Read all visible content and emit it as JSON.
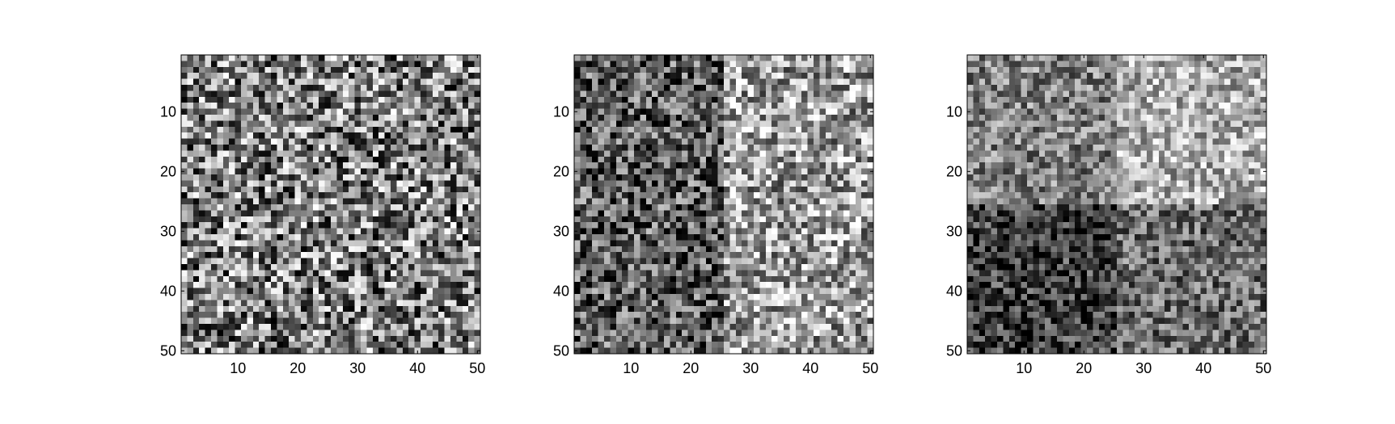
{
  "chart_data": [
    {
      "type": "heatmap",
      "title": "",
      "xlabel": "",
      "ylabel": "",
      "size": 50,
      "colormap": "gray",
      "xlim": [
        0.5,
        50.5
      ],
      "ylim": [
        0.5,
        50.5
      ],
      "y_direction": "reversed",
      "xticks": [
        10,
        20,
        30,
        40,
        50
      ],
      "yticks": [
        10,
        20,
        30,
        40,
        50
      ],
      "grid": false,
      "value_range": [
        0,
        1
      ],
      "pattern": "uniform random noise",
      "quadrant_means": {
        "top_left": 0.5,
        "top_right": 0.5,
        "bottom_left": 0.5,
        "bottom_right": 0.5
      },
      "noise_amplitude": 0.5
    },
    {
      "type": "heatmap",
      "title": "",
      "xlabel": "",
      "ylabel": "",
      "size": 50,
      "colormap": "gray",
      "xlim": [
        0.5,
        50.5
      ],
      "ylim": [
        0.5,
        50.5
      ],
      "y_direction": "reversed",
      "xticks": [
        10,
        20,
        30,
        40,
        50
      ],
      "yticks": [
        10,
        20,
        30,
        40,
        50
      ],
      "grid": false,
      "value_range": [
        0,
        1
      ],
      "pattern": "darker left half (columns 1-25), brighter right half (columns 26-50)",
      "quadrant_means": {
        "top_left": 0.35,
        "top_right": 0.62,
        "bottom_left": 0.35,
        "bottom_right": 0.62
      },
      "noise_amplitude": 0.42
    },
    {
      "type": "heatmap",
      "title": "",
      "xlabel": "",
      "ylabel": "",
      "size": 50,
      "colormap": "gray",
      "xlim": [
        0.5,
        50.5
      ],
      "ylim": [
        0.5,
        50.5
      ],
      "y_direction": "reversed",
      "xticks": [
        10,
        20,
        30,
        40,
        50
      ],
      "yticks": [
        10,
        20,
        30,
        40,
        50
      ],
      "grid": false,
      "value_range": [
        0,
        1
      ],
      "pattern": "four quadrants split at row 25 and column 25",
      "quadrant_means": {
        "top_left": 0.5,
        "top_right": 0.68,
        "bottom_left": 0.25,
        "bottom_right": 0.42
      },
      "noise_amplitude": 0.32
    }
  ]
}
